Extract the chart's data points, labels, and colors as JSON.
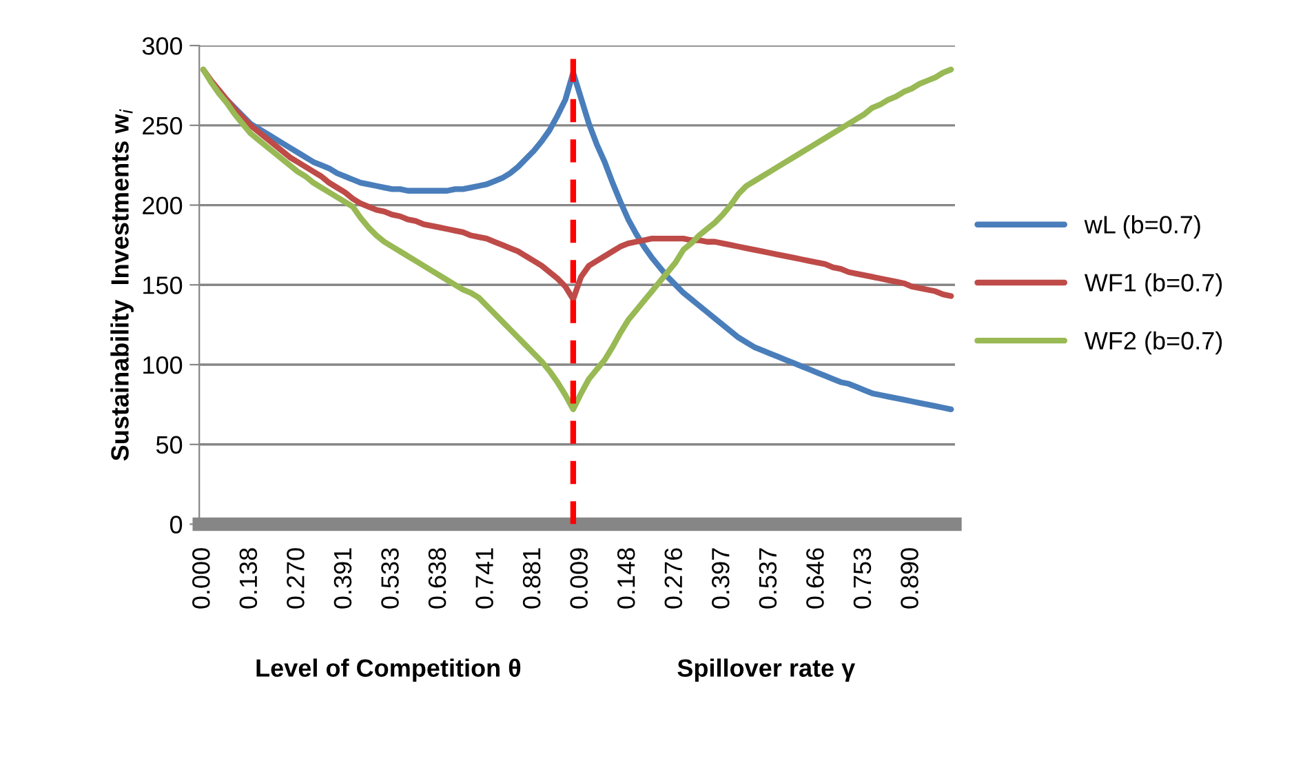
{
  "chart_data": {
    "type": "line",
    "ylabel": "Sustainability  Investments w$_{i}$",
    "categories": [
      "0.000",
      null,
      null,
      null,
      null,
      null,
      "0.138",
      null,
      null,
      null,
      null,
      null,
      "0.270",
      null,
      null,
      null,
      null,
      null,
      "0.391",
      null,
      null,
      null,
      null,
      null,
      "0.533",
      null,
      null,
      null,
      null,
      null,
      "0.638",
      null,
      null,
      null,
      null,
      null,
      "0.741",
      null,
      null,
      null,
      null,
      null,
      "0.881",
      null,
      null,
      null,
      null,
      null,
      "0.009",
      null,
      null,
      null,
      null,
      null,
      "0.148",
      null,
      null,
      null,
      null,
      null,
      "0.276",
      null,
      null,
      null,
      null,
      null,
      "0.397",
      null,
      null,
      null,
      null,
      null,
      "0.537",
      null,
      null,
      null,
      null,
      null,
      "0.646",
      null,
      null,
      null,
      null,
      null,
      "0.753",
      null,
      null,
      null,
      null,
      null,
      "0.890",
      null,
      null,
      null,
      null,
      null
    ],
    "series": [
      {
        "name": "wL (b=0.7)",
        "color": "#4a7ebb",
        "values": [
          null,
          null,
          272,
          266,
          261,
          256,
          251,
          248,
          245,
          242,
          239,
          236,
          233,
          230,
          227,
          225,
          223,
          220,
          218,
          216,
          214,
          213,
          212,
          211,
          210,
          210,
          209,
          209,
          209,
          209,
          209,
          209,
          210,
          210,
          211,
          212,
          213,
          215,
          217,
          220,
          224,
          229,
          234,
          240,
          247,
          256,
          266,
          283,
          267,
          251,
          238,
          227,
          214,
          202,
          191,
          182,
          174,
          167,
          161,
          155,
          150,
          145,
          141,
          137,
          133,
          129,
          125,
          121,
          117,
          114,
          111,
          109,
          107,
          105,
          103,
          101,
          99,
          97,
          95,
          93,
          91,
          89,
          88,
          86,
          84,
          82,
          81,
          80,
          79,
          78,
          77,
          76,
          75,
          74,
          73,
          72
        ]
      },
      {
        "name": "WF1 (b=0.7)",
        "color": "#be4b48",
        "values": [
          285,
          278,
          272,
          266,
          260,
          255,
          250,
          246,
          242,
          238,
          234,
          230,
          227,
          224,
          221,
          218,
          214,
          211,
          208,
          204,
          201,
          199,
          197,
          196,
          194,
          193,
          191,
          190,
          188,
          187,
          186,
          185,
          184,
          183,
          181,
          180,
          179,
          177,
          175,
          173,
          171,
          168,
          165,
          162,
          158,
          154,
          149,
          141,
          155,
          162,
          165,
          168,
          171,
          174,
          176,
          177,
          178,
          179,
          179,
          179,
          179,
          179,
          178,
          178,
          177,
          177,
          176,
          175,
          174,
          173,
          172,
          171,
          170,
          169,
          168,
          167,
          166,
          165,
          164,
          163,
          161,
          160,
          158,
          157,
          156,
          155,
          154,
          153,
          152,
          151,
          149,
          148,
          147,
          146,
          144,
          143
        ]
      },
      {
        "name": "WF2 (b=0.7)",
        "color": "#98b954",
        "values": [
          285,
          277,
          270,
          264,
          257,
          251,
          245,
          241,
          237,
          233,
          229,
          225,
          221,
          218,
          214,
          211,
          208,
          205,
          202,
          199,
          192,
          186,
          181,
          177,
          174,
          171,
          168,
          165,
          162,
          159,
          156,
          153,
          150,
          147,
          145,
          142,
          137,
          132,
          127,
          122,
          117,
          112,
          107,
          102,
          96,
          89,
          81,
          72,
          82,
          91,
          97,
          103,
          111,
          120,
          128,
          134,
          140,
          146,
          152,
          158,
          164,
          172,
          176,
          181,
          185,
          189,
          194,
          200,
          207,
          212,
          215,
          218,
          221,
          224,
          227,
          230,
          233,
          236,
          239,
          242,
          245,
          248,
          251,
          254,
          257,
          261,
          263,
          266,
          268,
          271,
          273,
          276,
          278,
          280,
          283,
          285
        ]
      }
    ],
    "ylim": [
      0,
      300
    ],
    "yticks": [
      0,
      50,
      100,
      150,
      200,
      250,
      300
    ],
    "grid": "y",
    "legend": "right",
    "marker": "none",
    "line_style": "solid",
    "annotations": [
      "Level of Competition θ",
      "Spillover rate γ"
    ]
  }
}
